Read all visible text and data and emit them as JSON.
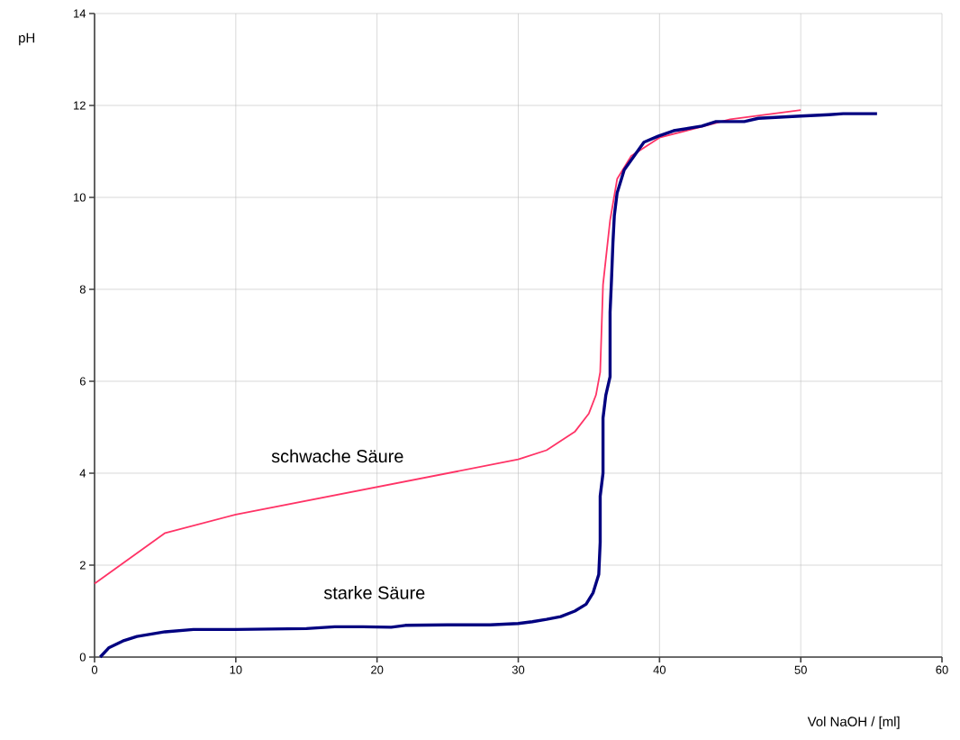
{
  "chart_data": {
    "type": "line",
    "xlabel": "Vol NaOH / [ml]",
    "ylabel": "pH",
    "xlim": [
      0,
      60
    ],
    "ylim": [
      0,
      14
    ],
    "xticks": [
      0,
      10,
      20,
      30,
      40,
      50,
      60
    ],
    "yticks": [
      0,
      2,
      4,
      6,
      8,
      10,
      12,
      14
    ],
    "grid": true,
    "marker": "none",
    "line_style": "solid",
    "series": [
      {
        "name": "schwache Säure",
        "color": "#ff3366",
        "x": [
          0,
          5,
          10,
          30,
          32,
          34,
          35,
          35.5,
          35.8,
          36,
          36.5,
          37,
          38,
          40,
          45,
          50
        ],
        "values": [
          1.6,
          2.7,
          3.1,
          4.3,
          4.5,
          4.9,
          5.3,
          5.7,
          6.2,
          8.1,
          9.5,
          10.4,
          10.9,
          11.3,
          11.7,
          11.9
        ]
      },
      {
        "name": "starke Säure",
        "color": "#000080",
        "x": [
          0.4,
          1,
          2,
          3,
          5,
          7,
          10,
          15,
          17,
          19,
          21,
          22,
          25,
          28,
          30,
          31,
          32,
          33,
          34,
          34.8,
          35.3,
          35.7,
          35.8,
          35.8,
          36,
          36,
          36.2,
          36.5,
          36.5,
          36.6,
          36.7,
          36.8,
          37,
          37.5,
          38.9,
          39.9,
          41,
          43,
          44,
          46,
          47,
          50,
          52,
          53,
          55.4
        ],
        "values": [
          0,
          0.2,
          0.35,
          0.45,
          0.55,
          0.6,
          0.6,
          0.62,
          0.66,
          0.66,
          0.65,
          0.69,
          0.7,
          0.7,
          0.73,
          0.77,
          0.82,
          0.88,
          1.0,
          1.15,
          1.4,
          1.8,
          2.5,
          3.5,
          4.0,
          5.2,
          5.7,
          6.1,
          7.5,
          8.2,
          9.0,
          9.6,
          10.1,
          10.6,
          11.2,
          11.33,
          11.45,
          11.55,
          11.65,
          11.65,
          11.72,
          11.77,
          11.8,
          11.82,
          11.82
        ]
      }
    ]
  }
}
